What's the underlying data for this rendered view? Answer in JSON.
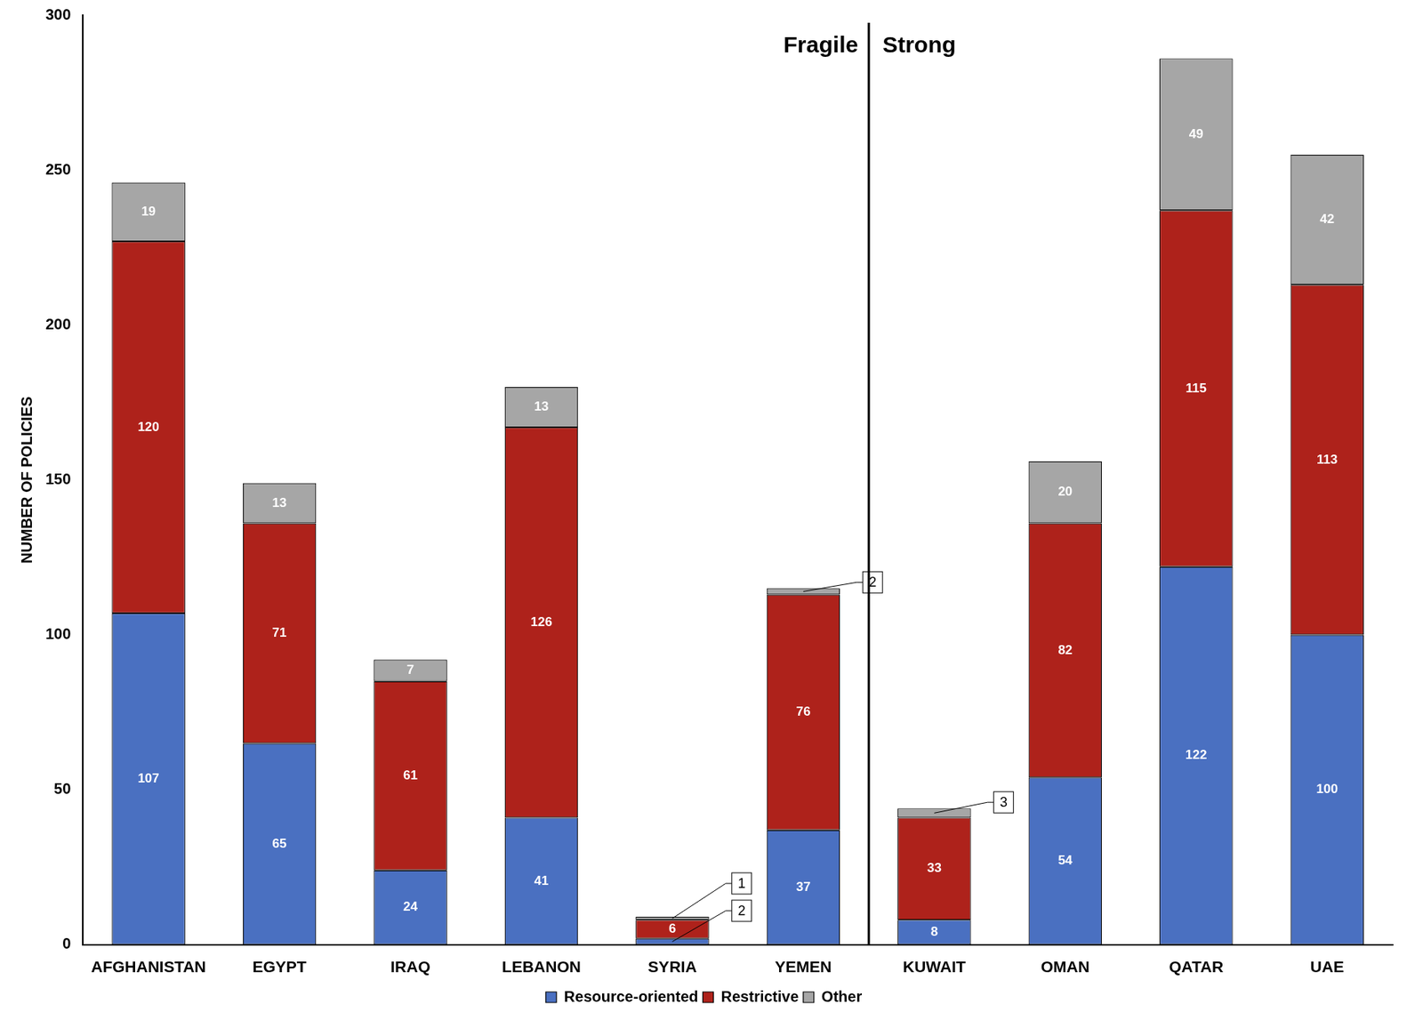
{
  "chart_data": {
    "type": "bar",
    "stacked": true,
    "data_labels": true,
    "legend": "bottom",
    "grid": false,
    "ylabel": "NUMBER OF POLICIES",
    "categories": [
      "AFGHANISTAN",
      "EGYPT",
      "IRAQ",
      "LEBANON",
      "SYRIA",
      "YEMEN",
      "KUWAIT",
      "OMAN",
      "QATAR",
      "UAE"
    ],
    "series": [
      {
        "name": "Resource-oriented",
        "color": "#4a70c1",
        "values": [
          107,
          65,
          24,
          41,
          2,
          37,
          8,
          54,
          122,
          100
        ]
      },
      {
        "name": "Restrictive",
        "color": "#ae221b",
        "values": [
          120,
          71,
          61,
          126,
          6,
          76,
          33,
          82,
          115,
          113
        ]
      },
      {
        "name": "Other",
        "color": "#a6a6a6",
        "values": [
          19,
          13,
          7,
          13,
          1,
          2,
          3,
          20,
          49,
          42
        ]
      }
    ],
    "ylim": [
      0,
      300
    ],
    "yticks": [
      0,
      50,
      100,
      150,
      200,
      250,
      300
    ],
    "annotations": [
      {
        "text": "Fragile",
        "x": 5.5,
        "y": 290,
        "align": "right"
      },
      {
        "text": "Strong",
        "x": 5.5,
        "y": 290,
        "align": "left"
      }
    ]
  }
}
